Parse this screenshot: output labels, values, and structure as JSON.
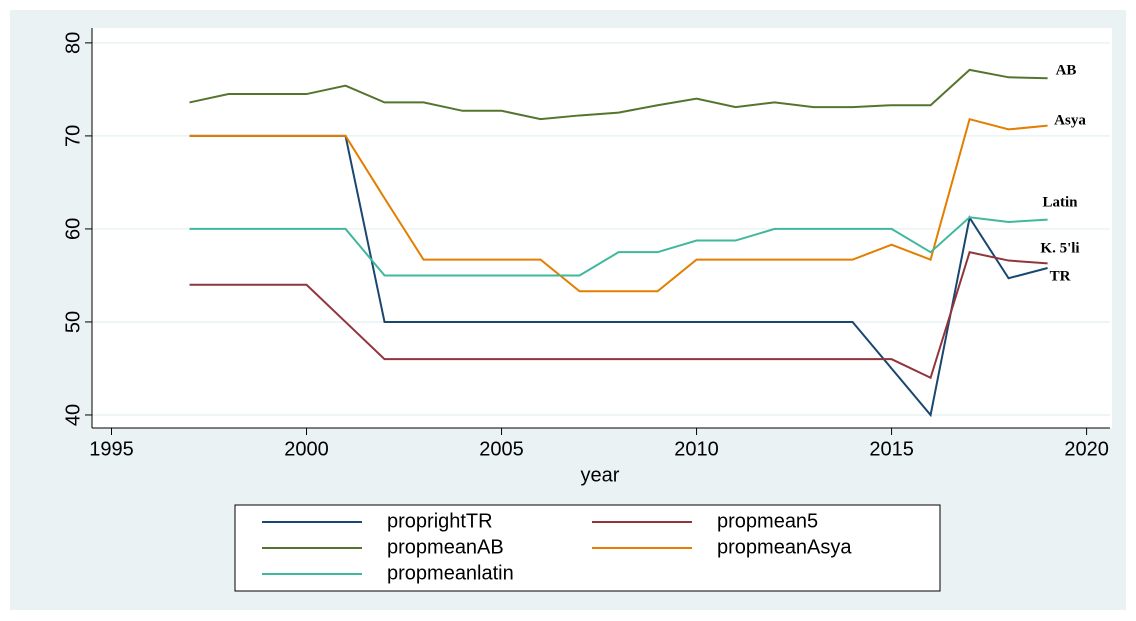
{
  "chart_data": {
    "type": "line",
    "xlabel": "year",
    "x": [
      1997,
      1998,
      1999,
      2000,
      2001,
      2002,
      2003,
      2004,
      2005,
      2006,
      2007,
      2008,
      2009,
      2010,
      2011,
      2012,
      2013,
      2014,
      2015,
      2016,
      2017,
      2018,
      2019
    ],
    "xlim": [
      1994.5,
      2020.6
    ],
    "xticks": [
      1995,
      2000,
      2005,
      2010,
      2015,
      2020
    ],
    "ylim": [
      38.6,
      81.6
    ],
    "yticks": [
      40,
      50,
      60,
      70,
      80
    ],
    "grid": true,
    "series": [
      {
        "name": "proprightTR",
        "color": "#1a476f",
        "values": [
          70,
          70,
          70,
          70,
          70,
          50,
          50,
          50,
          50,
          50,
          50,
          50,
          50,
          50,
          50,
          50,
          50,
          50,
          45,
          40,
          61.2,
          54.7,
          55.8
        ]
      },
      {
        "name": "propmean5",
        "color": "#90353b",
        "values": [
          54,
          54,
          54,
          54,
          50,
          46,
          46,
          46,
          46,
          46,
          46,
          46,
          46,
          46,
          46,
          46,
          46,
          46,
          46,
          44,
          57.5,
          56.6,
          56.3
        ]
      },
      {
        "name": "propmeanAB",
        "color": "#55752f",
        "values": [
          73.6,
          74.5,
          74.5,
          74.5,
          75.4,
          73.6,
          73.6,
          72.7,
          72.7,
          71.8,
          72.2,
          72.5,
          73.3,
          74.0,
          73.1,
          73.6,
          73.1,
          73.1,
          73.3,
          73.3,
          77.1,
          76.3,
          76.2
        ]
      },
      {
        "name": "propmeanAsya",
        "color": "#e37e00",
        "values": [
          70,
          70,
          70,
          70,
          70,
          63.3,
          56.7,
          56.7,
          56.7,
          56.7,
          53.3,
          53.3,
          53.3,
          56.7,
          56.7,
          56.7,
          56.7,
          56.7,
          58.3,
          56.7,
          71.8,
          70.7,
          71.1
        ]
      },
      {
        "name": "propmeanlatin",
        "color": "#40b89e",
        "values": [
          60,
          60,
          60,
          60,
          60,
          55,
          55,
          55,
          55,
          55,
          55,
          57.5,
          57.5,
          58.75,
          58.75,
          60,
          60,
          60,
          60,
          57.5,
          61.25,
          60.75,
          61
        ]
      }
    ],
    "annotations": [
      "AB",
      "Asya",
      "Latin",
      "K. 5'li",
      "TR"
    ]
  }
}
